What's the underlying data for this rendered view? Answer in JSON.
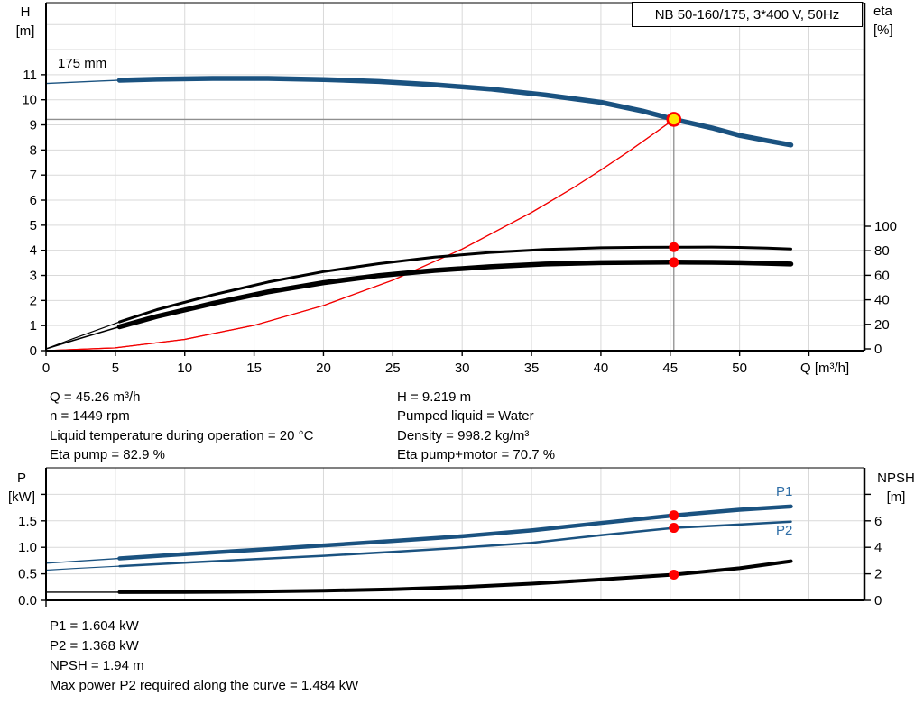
{
  "title_box": {
    "label": "NB 50-160/175, 3*400 V, 50Hz"
  },
  "axis_labels": {
    "h_line1": "H",
    "h_line2": "[m]",
    "eta_line1": "eta",
    "eta_line2": "[%]",
    "q_label": "Q [m³/h]",
    "p_line1": "P",
    "p_line2": "[kW]",
    "npsh_line1": "NPSH",
    "npsh_line2": "[m]"
  },
  "curve_label": "175 mm",
  "series_labels": {
    "p1": "P1",
    "p2": "P2"
  },
  "info_top_left": {
    "lines": [
      "Q = 45.26 m³/h",
      "n = 1449 rpm",
      "Liquid temperature during operation = 20 °C",
      "Eta pump = 82.9 %"
    ]
  },
  "info_top_right": {
    "lines": [
      "H = 9.219 m",
      "Pumped liquid = Water",
      "Density = 998.2 kg/m³",
      "Eta pump+motor = 70.7 %"
    ]
  },
  "info_bottom": {
    "lines": [
      "P1 = 1.604 kW",
      "P2 = 1.368 kW",
      "NPSH = 1.94 m",
      "Max power P2 required along the curve = 1.484 kW"
    ]
  },
  "duty_point": {
    "q_m3h": 45.26,
    "h_m": 9.219,
    "eta_pump_pct": 82.9,
    "eta_pump_motor_pct": 70.7,
    "p1_kw": 1.604,
    "p2_kw": 1.368,
    "npsh_m": 1.94
  },
  "colors": {
    "curve_blue": "#1a5280",
    "label_blue": "#2e6da6",
    "red": "#f20000",
    "dot_red": "#ff0000",
    "yellow": "#ffe600",
    "duty_gray": "#8f8f8f",
    "grid": "#d9d9d9",
    "black": "#000000"
  },
  "chart_data": [
    {
      "type": "line",
      "name": "qh-eta-chart",
      "title": "NB 50-160/175, 3*400 V, 50Hz",
      "xlabel": "Q [m³/h]",
      "ylabel": "H [m]",
      "y2label": "eta [%]",
      "xlim": [
        0,
        59
      ],
      "ylim": [
        0,
        13.8
      ],
      "y2lim": [
        0,
        100
      ],
      "x_ticks_labeled": [
        0,
        5,
        10,
        15,
        20,
        25,
        30,
        35,
        40,
        45,
        50
      ],
      "x_grid_ticks": [
        5,
        10,
        15,
        20,
        25,
        30,
        35,
        40,
        45,
        50,
        55
      ],
      "y_ticks_labeled": [
        0,
        1,
        2,
        3,
        4,
        5,
        6,
        7,
        8,
        9,
        10,
        11
      ],
      "y_grid_ticks": [
        1,
        2,
        3,
        4,
        5,
        6,
        7,
        8,
        9,
        10,
        11,
        12,
        13
      ],
      "y2_ticks_labeled": [
        0,
        20,
        40,
        60,
        80,
        100
      ],
      "grid": true,
      "series": [
        {
          "name": "system-curve",
          "y": "h",
          "color": "#f20000",
          "thin_width": 1.2,
          "thick_width": 1.2,
          "thin_until": 60,
          "points": [
            [
              0,
              0
            ],
            [
              5,
              0.11
            ],
            [
              10,
              0.45
            ],
            [
              15,
              1.01
            ],
            [
              20,
              1.8
            ],
            [
              25,
              2.81
            ],
            [
              30,
              4.05
            ],
            [
              35,
              5.51
            ],
            [
              38,
              6.49
            ],
            [
              40,
              7.2
            ],
            [
              42,
              7.94
            ],
            [
              44,
              8.72
            ],
            [
              45.26,
              9.219
            ]
          ]
        },
        {
          "name": "eta-pump-motor",
          "y": "eta",
          "color": "#000000",
          "thin_width": 1.6,
          "thick_width": 5.5,
          "thin_until": 5.3,
          "points": [
            [
              0,
              0
            ],
            [
              2,
              7
            ],
            [
              5.3,
              18
            ],
            [
              8,
              26.5
            ],
            [
              12,
              37
            ],
            [
              16,
              46.5
            ],
            [
              20,
              54
            ],
            [
              24,
              59.8
            ],
            [
              28,
              64
            ],
            [
              32,
              67
            ],
            [
              36,
              69.2
            ],
            [
              40,
              70.3
            ],
            [
              43,
              70.6
            ],
            [
              45.26,
              70.7
            ],
            [
              48,
              70.6
            ],
            [
              50,
              70.3
            ],
            [
              52,
              69.8
            ],
            [
              53.7,
              69.2
            ]
          ]
        },
        {
          "name": "eta-pump",
          "y": "eta",
          "color": "#000000",
          "thin_width": 1.2,
          "thick_width": 3,
          "thin_until": 5.3,
          "points": [
            [
              0,
              0
            ],
            [
              2,
              8.5
            ],
            [
              5.3,
              22
            ],
            [
              8,
              32
            ],
            [
              12,
              44
            ],
            [
              16,
              54.5
            ],
            [
              20,
              63
            ],
            [
              24,
              69.5
            ],
            [
              28,
              74.8
            ],
            [
              32,
              78.6
            ],
            [
              36,
              81
            ],
            [
              40,
              82.4
            ],
            [
              43,
              82.8
            ],
            [
              45.26,
              82.9
            ],
            [
              48,
              83
            ],
            [
              50,
              82.7
            ],
            [
              52,
              82.2
            ],
            [
              53.7,
              81.5
            ]
          ]
        },
        {
          "name": "head-175mm",
          "y": "h",
          "color": "#1a5280",
          "thin_width": 1.4,
          "thick_width": 5.5,
          "thin_until": 5.3,
          "points": [
            [
              0,
              10.65
            ],
            [
              2,
              10.7
            ],
            [
              4,
              10.75
            ],
            [
              5.3,
              10.78
            ],
            [
              8,
              10.82
            ],
            [
              12,
              10.85
            ],
            [
              16,
              10.85
            ],
            [
              20,
              10.81
            ],
            [
              24,
              10.73
            ],
            [
              28,
              10.6
            ],
            [
              32,
              10.43
            ],
            [
              36,
              10.19
            ],
            [
              40,
              9.9
            ],
            [
              43,
              9.55
            ],
            [
              45.26,
              9.219
            ],
            [
              48,
              8.88
            ],
            [
              50,
              8.58
            ],
            [
              52,
              8.37
            ],
            [
              53.7,
              8.2
            ]
          ]
        }
      ]
    },
    {
      "type": "line",
      "name": "power-npsh-chart",
      "title": "",
      "xlabel": "",
      "ylabel": "P [kW]",
      "y2label": "NPSH [m]",
      "xlim": [
        0,
        59
      ],
      "ylim": [
        0,
        2.5
      ],
      "y2lim": [
        0,
        10
      ],
      "x_grid_ticks": [
        5,
        10,
        15,
        20,
        25,
        30,
        35,
        40,
        45,
        50,
        55
      ],
      "y_ticks_labeled": [
        "0.0",
        "0.5",
        "1.0",
        "1.5"
      ],
      "y_tick_values": [
        0,
        0.5,
        1,
        1.5
      ],
      "y_tick_unlabeled": 2,
      "y_grid_ticks": [
        0.5,
        1,
        1.5,
        2
      ],
      "y2_ticks_labeled": [
        0,
        2,
        4,
        6
      ],
      "y2_tick_unlabeled": 8,
      "grid": true,
      "series": [
        {
          "name": "npsh",
          "y": "npsh",
          "color": "#000000",
          "thin_width": 1.4,
          "thick_width": 4,
          "thin_until": 5.3,
          "points": [
            [
              0,
              0.62
            ],
            [
              5.3,
              0.62
            ],
            [
              10,
              0.63
            ],
            [
              15,
              0.66
            ],
            [
              20,
              0.73
            ],
            [
              25,
              0.84
            ],
            [
              30,
              1.01
            ],
            [
              35,
              1.26
            ],
            [
              40,
              1.57
            ],
            [
              45.26,
              1.94
            ],
            [
              50,
              2.42
            ],
            [
              53.7,
              2.95
            ]
          ]
        },
        {
          "name": "p2",
          "y": "p",
          "color": "#1a5280",
          "thin_width": 1.2,
          "thick_width": 2.5,
          "thin_until": 5.3,
          "points": [
            [
              0,
              0.57
            ],
            [
              2,
              0.6
            ],
            [
              5.3,
              0.645
            ],
            [
              10,
              0.71
            ],
            [
              15,
              0.775
            ],
            [
              20,
              0.84
            ],
            [
              25,
              0.915
            ],
            [
              30,
              0.995
            ],
            [
              35,
              1.085
            ],
            [
              40,
              1.23
            ],
            [
              45.26,
              1.368
            ],
            [
              50,
              1.43
            ],
            [
              53.7,
              1.484
            ]
          ]
        },
        {
          "name": "p1",
          "y": "p",
          "color": "#1a5280",
          "thin_width": 1.4,
          "thick_width": 4.5,
          "thin_until": 5.3,
          "points": [
            [
              0,
              0.7
            ],
            [
              2,
              0.735
            ],
            [
              5.3,
              0.79
            ],
            [
              10,
              0.87
            ],
            [
              15,
              0.95
            ],
            [
              20,
              1.035
            ],
            [
              25,
              1.12
            ],
            [
              30,
              1.21
            ],
            [
              35,
              1.32
            ],
            [
              40,
              1.46
            ],
            [
              45.26,
              1.604
            ],
            [
              50,
              1.71
            ],
            [
              53.7,
              1.77
            ]
          ]
        }
      ]
    }
  ]
}
